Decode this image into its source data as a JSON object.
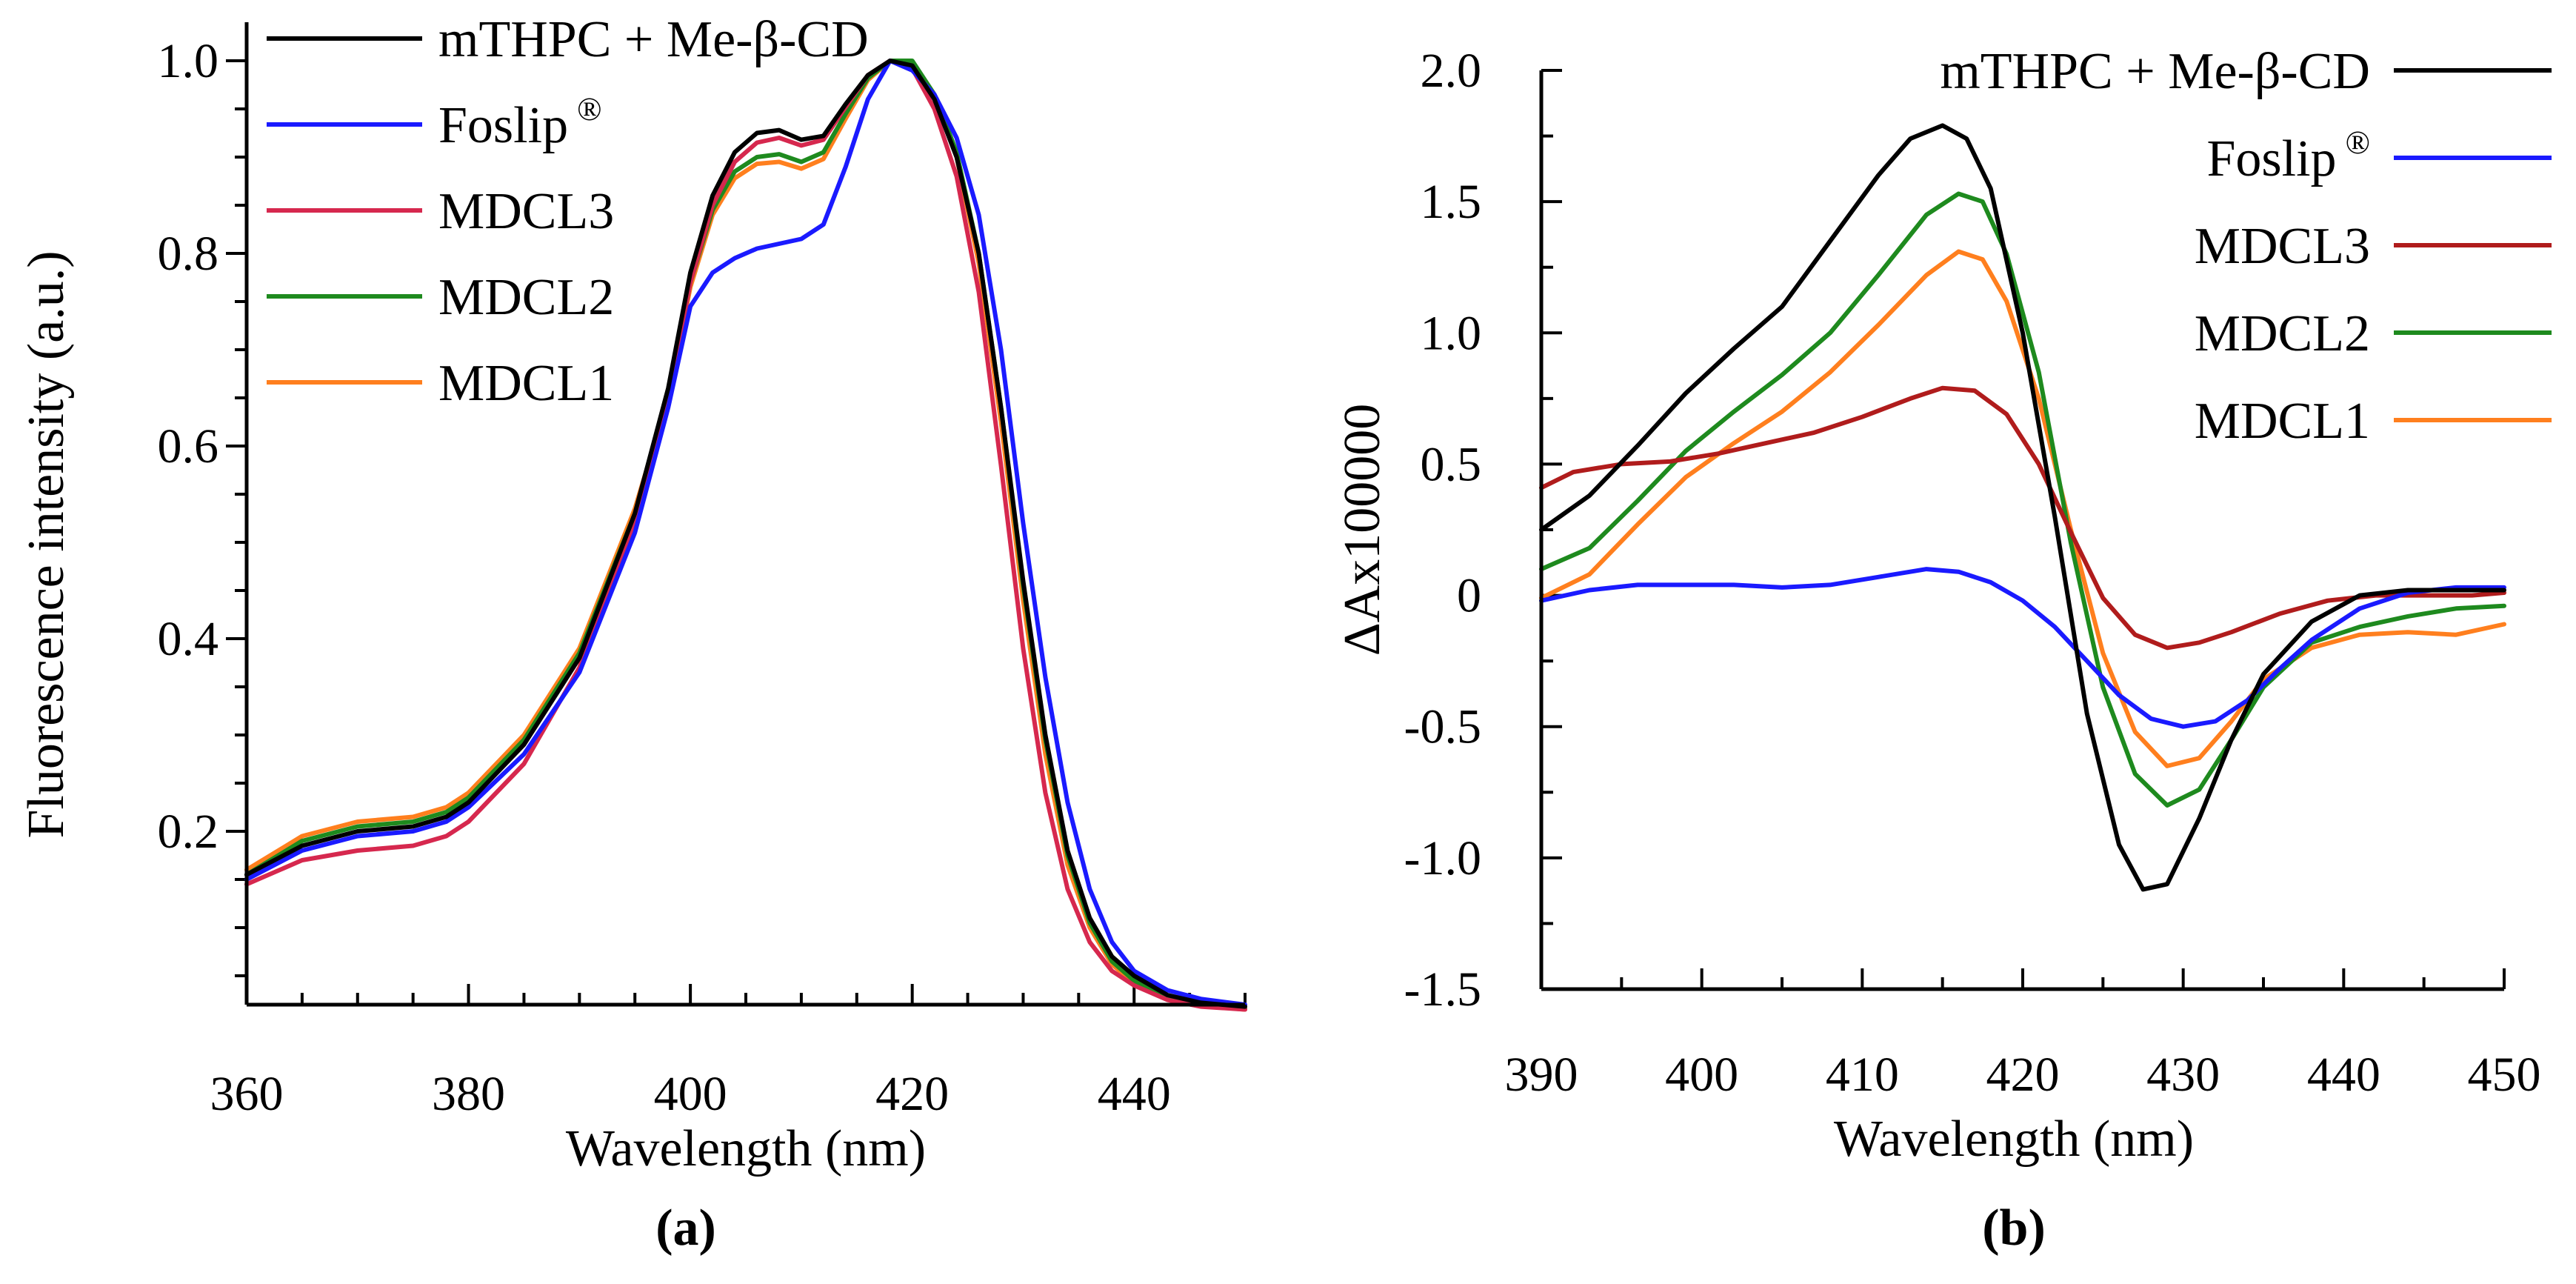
{
  "chart_data": [
    {
      "type": "line",
      "panel_label": "(a)",
      "title": "",
      "xlabel": "Wavelength (nm)",
      "ylabel": "Fluorescence intensity (a.u.)",
      "xlim": [
        360,
        450
      ],
      "ylim": [
        0.02,
        1.04
      ],
      "xticks": [
        360,
        380,
        400,
        420,
        440
      ],
      "xtick_labels": [
        "360",
        "380",
        "400",
        "420",
        "440"
      ],
      "yticks": [
        0.2,
        0.4,
        0.6,
        0.8,
        1.0
      ],
      "ytick_labels": [
        "0.2",
        "0.4",
        "0.6",
        "0.8",
        "1.0"
      ],
      "legend_position": "top-left",
      "series": [
        {
          "name": "mTHPC + Me-β-CD",
          "color": "#000000",
          "x": [
            360,
            365,
            370,
            375,
            378,
            380,
            385,
            390,
            395,
            398,
            400,
            402,
            404,
            406,
            408,
            410,
            412,
            414,
            416,
            418,
            420,
            422,
            424,
            426,
            428,
            430,
            432,
            434,
            436,
            438,
            440,
            443,
            446,
            450
          ],
          "y": [
            0.155,
            0.185,
            0.2,
            0.205,
            0.215,
            0.23,
            0.29,
            0.38,
            0.53,
            0.66,
            0.78,
            0.86,
            0.905,
            0.925,
            0.928,
            0.918,
            0.922,
            0.955,
            0.985,
            1.0,
            0.995,
            0.96,
            0.9,
            0.8,
            0.64,
            0.46,
            0.3,
            0.18,
            0.11,
            0.07,
            0.05,
            0.03,
            0.022,
            0.018
          ]
        },
        {
          "name": "Foslip",
          "color": "#1a1aff",
          "x": [
            360,
            365,
            370,
            375,
            378,
            380,
            385,
            390,
            395,
            398,
            400,
            402,
            404,
            406,
            408,
            410,
            412,
            414,
            416,
            418,
            420,
            422,
            424,
            426,
            428,
            430,
            432,
            434,
            436,
            438,
            440,
            443,
            446,
            450
          ],
          "y": [
            0.15,
            0.18,
            0.195,
            0.2,
            0.21,
            0.225,
            0.28,
            0.365,
            0.51,
            0.64,
            0.745,
            0.78,
            0.795,
            0.805,
            0.81,
            0.815,
            0.83,
            0.89,
            0.96,
            1.0,
            0.99,
            0.965,
            0.92,
            0.84,
            0.7,
            0.52,
            0.36,
            0.23,
            0.14,
            0.085,
            0.055,
            0.035,
            0.026,
            0.02
          ]
        },
        {
          "name": "MDCL3",
          "color": "#d6284e",
          "x": [
            360,
            365,
            370,
            375,
            378,
            380,
            385,
            390,
            395,
            398,
            400,
            402,
            404,
            406,
            408,
            410,
            412,
            414,
            416,
            418,
            420,
            422,
            424,
            426,
            428,
            430,
            432,
            434,
            436,
            438,
            440,
            443,
            446,
            450
          ],
          "y": [
            0.145,
            0.17,
            0.18,
            0.185,
            0.195,
            0.21,
            0.27,
            0.37,
            0.52,
            0.65,
            0.77,
            0.85,
            0.895,
            0.915,
            0.92,
            0.912,
            0.918,
            0.952,
            0.985,
            1.0,
            0.992,
            0.95,
            0.88,
            0.76,
            0.58,
            0.39,
            0.24,
            0.14,
            0.085,
            0.055,
            0.04,
            0.025,
            0.018,
            0.015
          ]
        },
        {
          "name": "MDCL2",
          "color": "#1e8a1e",
          "x": [
            360,
            365,
            370,
            375,
            378,
            380,
            385,
            390,
            395,
            398,
            400,
            402,
            404,
            406,
            408,
            410,
            412,
            414,
            416,
            418,
            420,
            422,
            424,
            426,
            428,
            430,
            432,
            434,
            436,
            438,
            440,
            443,
            446,
            450
          ],
          "y": [
            0.155,
            0.19,
            0.205,
            0.21,
            0.22,
            0.235,
            0.295,
            0.385,
            0.53,
            0.65,
            0.77,
            0.845,
            0.885,
            0.9,
            0.903,
            0.895,
            0.905,
            0.945,
            0.982,
            1.0,
            1.0,
            0.965,
            0.905,
            0.8,
            0.64,
            0.455,
            0.295,
            0.175,
            0.105,
            0.065,
            0.045,
            0.028,
            0.02,
            0.016
          ]
        },
        {
          "name": "MDCL1",
          "color": "#ff7f1e",
          "x": [
            360,
            365,
            370,
            375,
            378,
            380,
            385,
            390,
            395,
            398,
            400,
            402,
            404,
            406,
            408,
            410,
            412,
            414,
            416,
            418,
            420,
            422,
            424,
            426,
            428,
            430,
            432,
            434,
            436,
            438,
            440,
            443,
            446,
            450
          ],
          "y": [
            0.16,
            0.195,
            0.21,
            0.215,
            0.225,
            0.24,
            0.3,
            0.39,
            0.535,
            0.65,
            0.765,
            0.84,
            0.878,
            0.893,
            0.895,
            0.888,
            0.898,
            0.94,
            0.98,
            1.0,
            0.998,
            0.962,
            0.9,
            0.79,
            0.625,
            0.44,
            0.28,
            0.165,
            0.1,
            0.062,
            0.042,
            0.026,
            0.019,
            0.015
          ]
        }
      ]
    },
    {
      "type": "line",
      "panel_label": "(b)",
      "title": "",
      "xlabel": "Wavelength (nm)",
      "ylabel": "ΔAx100000",
      "xlim": [
        390,
        450
      ],
      "ylim": [
        -1.5,
        2.0
      ],
      "xticks": [
        390,
        400,
        410,
        420,
        430,
        440,
        450
      ],
      "xtick_labels": [
        "390",
        "400",
        "410",
        "420",
        "430",
        "440",
        "450"
      ],
      "yticks": [
        -1.5,
        -1.0,
        -0.5,
        0,
        0.5,
        1.0,
        1.5,
        2.0
      ],
      "ytick_labels": [
        "-1.5",
        "-1.0",
        "-0.5",
        "0",
        "0.5",
        "1.0",
        "1.5",
        "2.0"
      ],
      "legend_position": "top-right",
      "series": [
        {
          "name": "mTHPC + Me-β-CD",
          "color": "#000000",
          "x": [
            390,
            393,
            396,
            399,
            402,
            405,
            408,
            411,
            413,
            415,
            416.5,
            418,
            420,
            422,
            424,
            426,
            427.5,
            429,
            431,
            433,
            435,
            438,
            441,
            444,
            447,
            450
          ],
          "y": [
            0.25,
            0.38,
            0.57,
            0.77,
            0.94,
            1.1,
            1.35,
            1.6,
            1.74,
            1.79,
            1.74,
            1.55,
            1.0,
            0.3,
            -0.45,
            -0.95,
            -1.12,
            -1.1,
            -0.85,
            -0.55,
            -0.3,
            -0.1,
            0.0,
            0.02,
            0.02,
            0.02
          ]
        },
        {
          "name": "Foslip",
          "color": "#1a1aff",
          "x": [
            390,
            393,
            396,
            399,
            402,
            405,
            408,
            411,
            414,
            416,
            418,
            420,
            422,
            424,
            426,
            428,
            430,
            432,
            434,
            436,
            438,
            441,
            444,
            447,
            450
          ],
          "y": [
            -0.02,
            0.02,
            0.04,
            0.04,
            0.04,
            0.03,
            0.04,
            0.07,
            0.1,
            0.09,
            0.05,
            -0.02,
            -0.12,
            -0.25,
            -0.38,
            -0.47,
            -0.5,
            -0.48,
            -0.4,
            -0.28,
            -0.17,
            -0.05,
            0.01,
            0.03,
            0.03
          ]
        },
        {
          "name": "MDCL3",
          "color": "#b01c1c",
          "x": [
            390,
            392,
            395,
            398,
            401,
            404,
            407,
            410,
            413,
            415,
            417,
            419,
            421,
            423,
            425,
            427,
            429,
            431,
            433,
            436,
            439,
            442,
            445,
            448,
            450
          ],
          "y": [
            0.41,
            0.47,
            0.5,
            0.51,
            0.54,
            0.58,
            0.62,
            0.68,
            0.75,
            0.79,
            0.78,
            0.69,
            0.5,
            0.24,
            -0.01,
            -0.15,
            -0.2,
            -0.18,
            -0.14,
            -0.07,
            -0.02,
            0.0,
            0.0,
            0.0,
            0.01
          ]
        },
        {
          "name": "MDCL2",
          "color": "#1e8a1e",
          "x": [
            390,
            393,
            396,
            399,
            402,
            405,
            408,
            411,
            414,
            416,
            417.5,
            419,
            421,
            423,
            425,
            427,
            429,
            431,
            433,
            435,
            438,
            441,
            444,
            447,
            450
          ],
          "y": [
            0.1,
            0.18,
            0.36,
            0.55,
            0.7,
            0.84,
            1.0,
            1.22,
            1.45,
            1.53,
            1.5,
            1.3,
            0.85,
            0.2,
            -0.35,
            -0.68,
            -0.8,
            -0.74,
            -0.55,
            -0.35,
            -0.18,
            -0.12,
            -0.08,
            -0.05,
            -0.04
          ]
        },
        {
          "name": "MDCL1",
          "color": "#ff7f1e",
          "x": [
            390,
            393,
            396,
            399,
            402,
            405,
            408,
            411,
            414,
            416,
            417.5,
            419,
            421,
            423,
            425,
            427,
            429,
            431,
            433,
            435,
            438,
            441,
            444,
            447,
            450
          ],
          "y": [
            -0.01,
            0.08,
            0.27,
            0.45,
            0.58,
            0.7,
            0.85,
            1.03,
            1.22,
            1.31,
            1.28,
            1.12,
            0.75,
            0.25,
            -0.22,
            -0.52,
            -0.65,
            -0.62,
            -0.48,
            -0.32,
            -0.2,
            -0.15,
            -0.14,
            -0.15,
            -0.11
          ]
        }
      ]
    }
  ]
}
